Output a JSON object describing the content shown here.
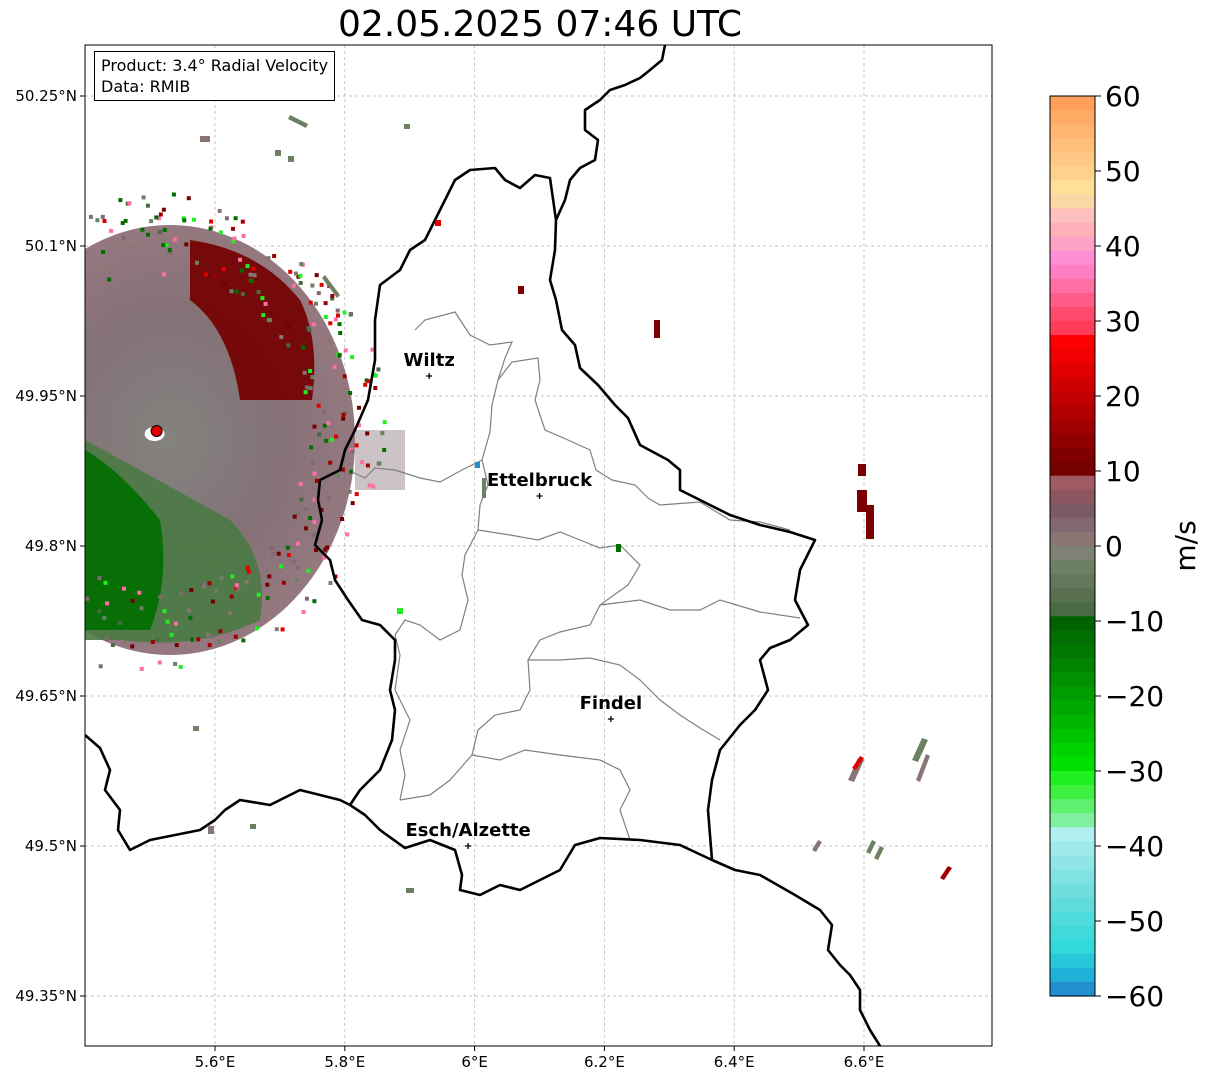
{
  "title": "02.05.2025 07:46 UTC",
  "info": {
    "product": "Product: 3.4° Radial Velocity",
    "data": "Data: RMIB"
  },
  "map": {
    "lon_range": [
      5.4,
      6.8
    ],
    "lat_range": [
      49.3,
      50.3
    ],
    "x_ticks": [
      5.6,
      5.8,
      6.0,
      6.2,
      6.4,
      6.6
    ],
    "x_tick_labels": [
      "5.6°E",
      "5.8°E",
      "6°E",
      "6.2°E",
      "6.4°E",
      "6.6°E"
    ],
    "y_ticks": [
      49.35,
      49.5,
      49.65,
      49.8,
      49.95,
      50.1,
      50.25
    ],
    "y_tick_labels": [
      "49.35°N",
      "49.5°N",
      "49.65°N",
      "49.8°N",
      "49.95°N",
      "50.1°N",
      "50.25°N"
    ],
    "gridlines": true,
    "radar_site": {
      "lon": 5.51,
      "lat": 49.915,
      "color": "#e00000"
    },
    "cities": [
      {
        "name": "Wiltz",
        "lon": 5.93,
        "lat": 49.97
      },
      {
        "name": "Ettelbruck",
        "lon": 6.1,
        "lat": 49.85
      },
      {
        "name": "Findel",
        "lon": 6.21,
        "lat": 49.627
      },
      {
        "name": "Esch/Alzette",
        "lon": 5.99,
        "lat": 49.5
      }
    ]
  },
  "colorbar": {
    "label": "m/s",
    "min": -60,
    "max": 60,
    "tick_values": [
      60,
      50,
      40,
      30,
      20,
      10,
      0,
      -10,
      -20,
      -30,
      -40,
      -50,
      -60
    ],
    "tick_labels": [
      "60",
      "50",
      "40",
      "30",
      "20",
      "10",
      "0",
      "−10",
      "−20",
      "−30",
      "−40",
      "−50",
      "−60"
    ],
    "colors_top_to_bottom": [
      "#ffa05a",
      "#ffaa65",
      "#ffb470",
      "#ffbe7a",
      "#ffc884",
      "#ffd28c",
      "#ffe096",
      "#fcd7a6",
      "#ffc0c0",
      "#ffb0b8",
      "#ffa2c8",
      "#ff8ed4",
      "#ff7ec4",
      "#ff6ea4",
      "#ff5c8a",
      "#ff4a6e",
      "#ff3c5a",
      "#ff0000",
      "#f00000",
      "#e00000",
      "#d00000",
      "#c00000",
      "#b00000",
      "#a00000",
      "#900000",
      "#800000",
      "#740000",
      "#a05a64",
      "#8c5660",
      "#7c5a64",
      "#826870",
      "#8a7474",
      "#7e8274",
      "#6e8064",
      "#62785c",
      "#587050",
      "#4a6a44",
      "#006200",
      "#006e00",
      "#007800",
      "#008400",
      "#009000",
      "#009c00",
      "#00a800",
      "#00b400",
      "#00c400",
      "#00d400",
      "#00e000",
      "#20f020",
      "#40f040",
      "#60f070",
      "#80f0a0",
      "#b0f0f0",
      "#a0eaea",
      "#90e6e6",
      "#80e2e2",
      "#70dede",
      "#60dcdc",
      "#50dcdc",
      "#40dada",
      "#30dada",
      "#28c8da",
      "#20b0d8",
      "#2090d0"
    ]
  }
}
